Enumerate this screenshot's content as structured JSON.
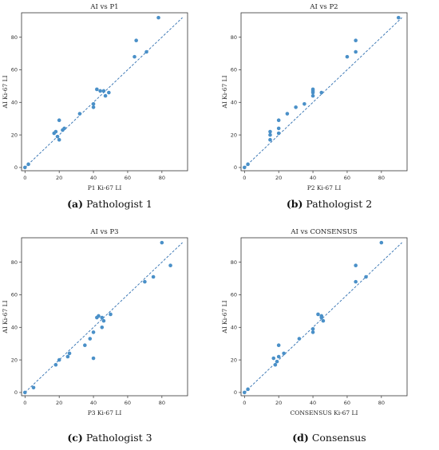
{
  "chart_data": [
    {
      "type": "scatter",
      "title": "AI vs P1",
      "xlabel": "P1 Ki-67 LI",
      "ylabel": "AI Ki-67 LI",
      "caption_tag": "(a)",
      "caption_text": "Pathologist 1",
      "xlim": [
        -2,
        95
      ],
      "ylim": [
        -2,
        95
      ],
      "xticks": [
        0,
        20,
        40,
        60,
        80
      ],
      "yticks": [
        0,
        20,
        40,
        60,
        80
      ],
      "trendline": [
        [
          0,
          0
        ],
        [
          92,
          92
        ]
      ],
      "points": [
        [
          0,
          0
        ],
        [
          2,
          2
        ],
        [
          17,
          21
        ],
        [
          18,
          22
        ],
        [
          19,
          19
        ],
        [
          20,
          17
        ],
        [
          20,
          29
        ],
        [
          22,
          23
        ],
        [
          23,
          24
        ],
        [
          32,
          33
        ],
        [
          40,
          37
        ],
        [
          40,
          39
        ],
        [
          42,
          48
        ],
        [
          44,
          47
        ],
        [
          46,
          47
        ],
        [
          47,
          44
        ],
        [
          49,
          46
        ],
        [
          64,
          68
        ],
        [
          65,
          78
        ],
        [
          71,
          71
        ],
        [
          78,
          92
        ]
      ]
    },
    {
      "type": "scatter",
      "title": "AI vs P2",
      "xlabel": "P2 Ki-67 LI",
      "ylabel": "AI Ki-67 LI",
      "caption_tag": "(b)",
      "caption_text": "Pathologist 2",
      "xlim": [
        -2,
        95
      ],
      "ylim": [
        -2,
        95
      ],
      "xticks": [
        0,
        20,
        40,
        60,
        80
      ],
      "yticks": [
        0,
        20,
        40,
        60,
        80
      ],
      "trendline": [
        [
          0,
          0
        ],
        [
          92,
          92
        ]
      ],
      "points": [
        [
          0,
          0
        ],
        [
          2,
          2
        ],
        [
          15,
          17
        ],
        [
          15,
          20
        ],
        [
          15,
          22
        ],
        [
          20,
          21
        ],
        [
          20,
          24
        ],
        [
          20,
          29
        ],
        [
          25,
          33
        ],
        [
          30,
          37
        ],
        [
          35,
          39
        ],
        [
          40,
          44
        ],
        [
          40,
          46
        ],
        [
          40,
          47
        ],
        [
          40,
          48
        ],
        [
          45,
          46
        ],
        [
          60,
          68
        ],
        [
          65,
          71
        ],
        [
          65,
          78
        ],
        [
          90,
          92
        ]
      ]
    },
    {
      "type": "scatter",
      "title": "AI vs P3",
      "xlabel": "P3 Ki-67 LI",
      "ylabel": "AI Ki-67 LI",
      "caption_tag": "(c)",
      "caption_text": "Pathologist 3",
      "xlim": [
        -2,
        95
      ],
      "ylim": [
        -2,
        95
      ],
      "xticks": [
        0,
        20,
        40,
        60,
        80
      ],
      "yticks": [
        0,
        20,
        40,
        60,
        80
      ],
      "trendline": [
        [
          0,
          0
        ],
        [
          92,
          92
        ]
      ],
      "points": [
        [
          0,
          0
        ],
        [
          5,
          3
        ],
        [
          18,
          17
        ],
        [
          20,
          20
        ],
        [
          25,
          22
        ],
        [
          26,
          24
        ],
        [
          35,
          29
        ],
        [
          38,
          33
        ],
        [
          40,
          21
        ],
        [
          40,
          37
        ],
        [
          42,
          46
        ],
        [
          43,
          47
        ],
        [
          45,
          40
        ],
        [
          45,
          46
        ],
        [
          46,
          44
        ],
        [
          50,
          48
        ],
        [
          70,
          68
        ],
        [
          75,
          71
        ],
        [
          80,
          92
        ],
        [
          85,
          78
        ]
      ]
    },
    {
      "type": "scatter",
      "title": "AI vs CONSENSUS",
      "xlabel": "CONSENSUS Ki-67 LI",
      "ylabel": "AI Ki-67 LI",
      "caption_tag": "(d)",
      "caption_text": "Consensus",
      "xlim": [
        -2,
        95
      ],
      "ylim": [
        -2,
        95
      ],
      "xticks": [
        0,
        20,
        40,
        60,
        80
      ],
      "yticks": [
        0,
        20,
        40,
        60,
        80
      ],
      "trendline": [
        [
          0,
          0
        ],
        [
          92,
          92
        ]
      ],
      "points": [
        [
          0,
          0
        ],
        [
          2,
          2
        ],
        [
          17,
          21
        ],
        [
          18,
          17
        ],
        [
          19,
          19
        ],
        [
          20,
          22
        ],
        [
          20,
          29
        ],
        [
          23,
          24
        ],
        [
          32,
          33
        ],
        [
          40,
          37
        ],
        [
          40,
          39
        ],
        [
          43,
          48
        ],
        [
          45,
          47
        ],
        [
          45,
          46
        ],
        [
          46,
          44
        ],
        [
          65,
          68
        ],
        [
          65,
          78
        ],
        [
          71,
          71
        ],
        [
          80,
          92
        ]
      ]
    }
  ],
  "colors": {
    "point": "#4a90c8",
    "line": "#2f6fb0",
    "axis": "#333333"
  }
}
